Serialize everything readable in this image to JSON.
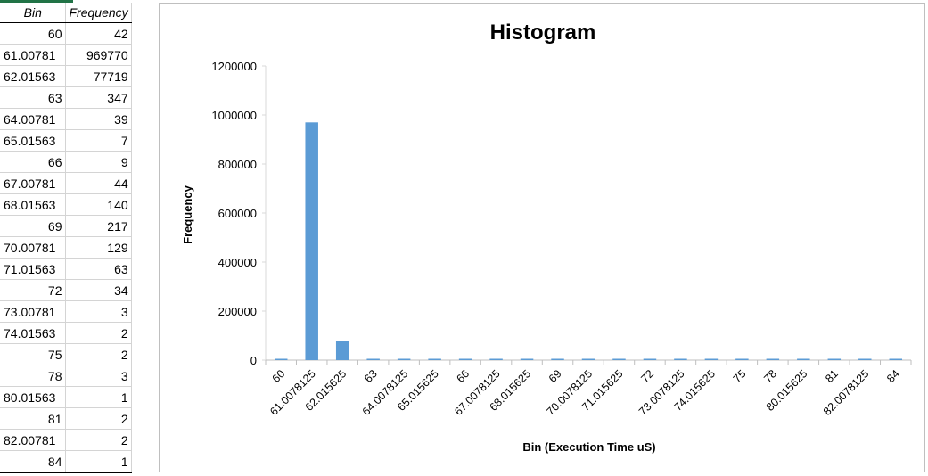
{
  "sheet": {
    "headers": [
      "Bin",
      "Frequency"
    ],
    "rows": [
      [
        "60",
        "42"
      ],
      [
        "61.00781",
        "969770"
      ],
      [
        "62.01563",
        "77719"
      ],
      [
        "63",
        "347"
      ],
      [
        "64.00781",
        "39"
      ],
      [
        "65.01563",
        "7"
      ],
      [
        "66",
        "9"
      ],
      [
        "67.00781",
        "44"
      ],
      [
        "68.01563",
        "140"
      ],
      [
        "69",
        "217"
      ],
      [
        "70.00781",
        "129"
      ],
      [
        "71.01563",
        "63"
      ],
      [
        "72",
        "34"
      ],
      [
        "73.00781",
        "3"
      ],
      [
        "74.01563",
        "2"
      ],
      [
        "75",
        "2"
      ],
      [
        "78",
        "3"
      ],
      [
        "80.01563",
        "1"
      ],
      [
        "81",
        "2"
      ],
      [
        "82.00781",
        "2"
      ],
      [
        "84",
        "1"
      ]
    ]
  },
  "chart_data": {
    "type": "bar",
    "title": "Histogram",
    "xlabel": "Bin (Execution Time uS)",
    "ylabel": "Frequency",
    "ylim": [
      0,
      1200000
    ],
    "yticks": [
      "0",
      "200000",
      "400000",
      "600000",
      "800000",
      "1000000",
      "1200000"
    ],
    "categories": [
      "60",
      "61.0078125",
      "62.015625",
      "63",
      "64.0078125",
      "65.015625",
      "66",
      "67.0078125",
      "68.015625",
      "69",
      "70.0078125",
      "71.015625",
      "72",
      "73.0078125",
      "74.015625",
      "75",
      "78",
      "80.015625",
      "81",
      "82.0078125",
      "84"
    ],
    "values": [
      42,
      969770,
      77719,
      347,
      39,
      7,
      9,
      44,
      140,
      217,
      129,
      63,
      34,
      3,
      2,
      2,
      3,
      1,
      2,
      2,
      1
    ],
    "bar_color": "#5B9BD5",
    "grid": false,
    "legend": "none"
  }
}
